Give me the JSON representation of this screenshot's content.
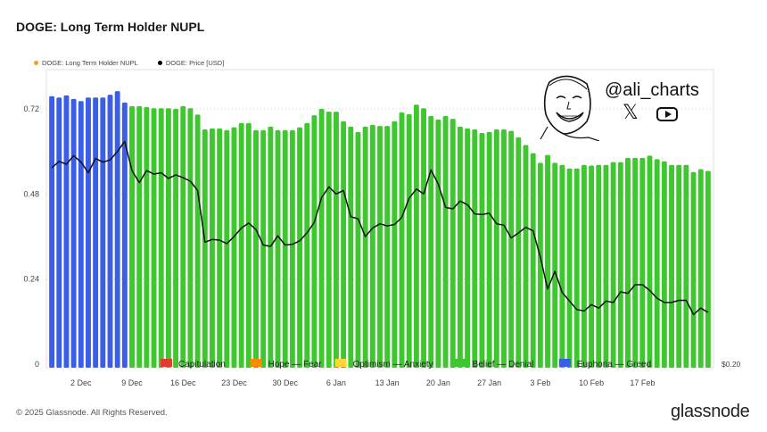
{
  "title": "DOGE: Long Term Holder NUPL",
  "top_legend": [
    {
      "label": "DOGE: Long Term Holder NUPL",
      "color": "#f0a030"
    },
    {
      "label": "DOGE: Price [USD]",
      "color": "#000000"
    }
  ],
  "badge": {
    "handle": "@ali_charts",
    "x_icon_glyph": "𝕏"
  },
  "footer": {
    "copyright": "© 2025 Glassnode. All Rights Reserved.",
    "brand": "glassnode"
  },
  "chart_data": {
    "type": "bar",
    "title": "DOGE: Long Term Holder NUPL",
    "xlabel": "",
    "ylabel": "",
    "ylim": [
      0,
      0.72
    ],
    "y_ticks": [
      0,
      0.24,
      0.48,
      0.72
    ],
    "y_tick_labels": [
      "0",
      "0.24",
      "0.48",
      "0.72"
    ],
    "right_axis_label": "$0.20",
    "x_tick_labels": [
      "2 Dec",
      "9 Dec",
      "16 Dec",
      "23 Dec",
      "30 Dec",
      "6 Jan",
      "13 Jan",
      "20 Jan",
      "27 Jan",
      "3 Feb",
      "10 Feb",
      "17 Feb"
    ],
    "x_tick_indices": [
      4,
      11,
      18,
      25,
      32,
      39,
      46,
      53,
      60,
      67,
      74,
      81
    ],
    "grid": "horizontal-dotted",
    "zone_colors": {
      "Capitulation": "#e53935",
      "Hope — Fear": "#fb8c00",
      "Optimism — Anxiety": "#fdd835",
      "Belief — Denial": "#3ec72e",
      "Euphoria — Greed": "#3b5ee8"
    },
    "zone_legend": [
      "Capitulation",
      "Hope — Fear",
      "Optimism — Anxiety",
      "Belief — Denial",
      "Euphoria — Greed"
    ],
    "series": [
      {
        "name": "DOGE: Long Term Holder NUPL",
        "values": [
          0.756,
          0.752,
          0.758,
          0.748,
          0.742,
          0.752,
          0.752,
          0.752,
          0.76,
          0.77,
          0.738,
          0.728,
          0.728,
          0.725,
          0.722,
          0.722,
          0.722,
          0.72,
          0.728,
          0.722,
          0.704,
          0.662,
          0.665,
          0.665,
          0.66,
          0.668,
          0.68,
          0.68,
          0.66,
          0.66,
          0.67,
          0.66,
          0.66,
          0.66,
          0.668,
          0.68,
          0.702,
          0.72,
          0.712,
          0.712,
          0.685,
          0.67,
          0.655,
          0.67,
          0.675,
          0.672,
          0.672,
          0.685,
          0.71,
          0.705,
          0.732,
          0.722,
          0.7,
          0.69,
          0.7,
          0.692,
          0.67,
          0.665,
          0.662,
          0.652,
          0.655,
          0.662,
          0.662,
          0.658,
          0.64,
          0.618,
          0.595,
          0.568,
          0.59,
          0.568,
          0.562,
          0.552,
          0.552,
          0.562,
          0.56,
          0.562,
          0.562,
          0.57,
          0.57,
          0.582,
          0.582,
          0.582,
          0.588,
          0.578,
          0.572,
          0.562,
          0.562,
          0.562,
          0.542,
          0.55,
          0.545
        ],
        "zones": [
          "E",
          "E",
          "E",
          "E",
          "E",
          "E",
          "E",
          "E",
          "E",
          "E",
          "E",
          "B",
          "B",
          "B",
          "B",
          "B",
          "B",
          "B",
          "B",
          "B",
          "B",
          "B",
          "B",
          "B",
          "B",
          "B",
          "B",
          "B",
          "B",
          "B",
          "B",
          "B",
          "B",
          "B",
          "B",
          "B",
          "B",
          "B",
          "B",
          "B",
          "B",
          "B",
          "B",
          "B",
          "B",
          "B",
          "B",
          "B",
          "B",
          "B",
          "B",
          "B",
          "B",
          "B",
          "B",
          "B",
          "B",
          "B",
          "B",
          "B",
          "B",
          "B",
          "B",
          "B",
          "B",
          "B",
          "B",
          "B",
          "B",
          "B",
          "B",
          "B",
          "B",
          "B",
          "B",
          "B",
          "B",
          "B",
          "B",
          "B",
          "B",
          "B",
          "B",
          "B",
          "B",
          "B",
          "B",
          "B",
          "B",
          "B",
          "B"
        ]
      },
      {
        "name": "DOGE: Price [USD]",
        "values": [
          0.554,
          0.572,
          0.564,
          0.588,
          0.57,
          0.54,
          0.58,
          0.57,
          0.576,
          0.6,
          0.628,
          0.546,
          0.512,
          0.546,
          0.536,
          0.54,
          0.524,
          0.534,
          0.526,
          0.516,
          0.49,
          0.344,
          0.352,
          0.35,
          0.34,
          0.36,
          0.384,
          0.398,
          0.38,
          0.336,
          0.332,
          0.362,
          0.336,
          0.338,
          0.348,
          0.37,
          0.4,
          0.47,
          0.5,
          0.48,
          0.49,
          0.416,
          0.41,
          0.36,
          0.384,
          0.396,
          0.39,
          0.394,
          0.414,
          0.468,
          0.494,
          0.48,
          0.548,
          0.508,
          0.442,
          0.438,
          0.46,
          0.45,
          0.424,
          0.422,
          0.426,
          0.396,
          0.392,
          0.356,
          0.37,
          0.386,
          0.376,
          0.302,
          0.212,
          0.262,
          0.202,
          0.178,
          0.154,
          0.15,
          0.168,
          0.158,
          0.178,
          0.174,
          0.204,
          0.2,
          0.224,
          0.224,
          0.208,
          0.186,
          0.174,
          0.174,
          0.18,
          0.18,
          0.14,
          0.158,
          0.146
        ]
      }
    ]
  }
}
